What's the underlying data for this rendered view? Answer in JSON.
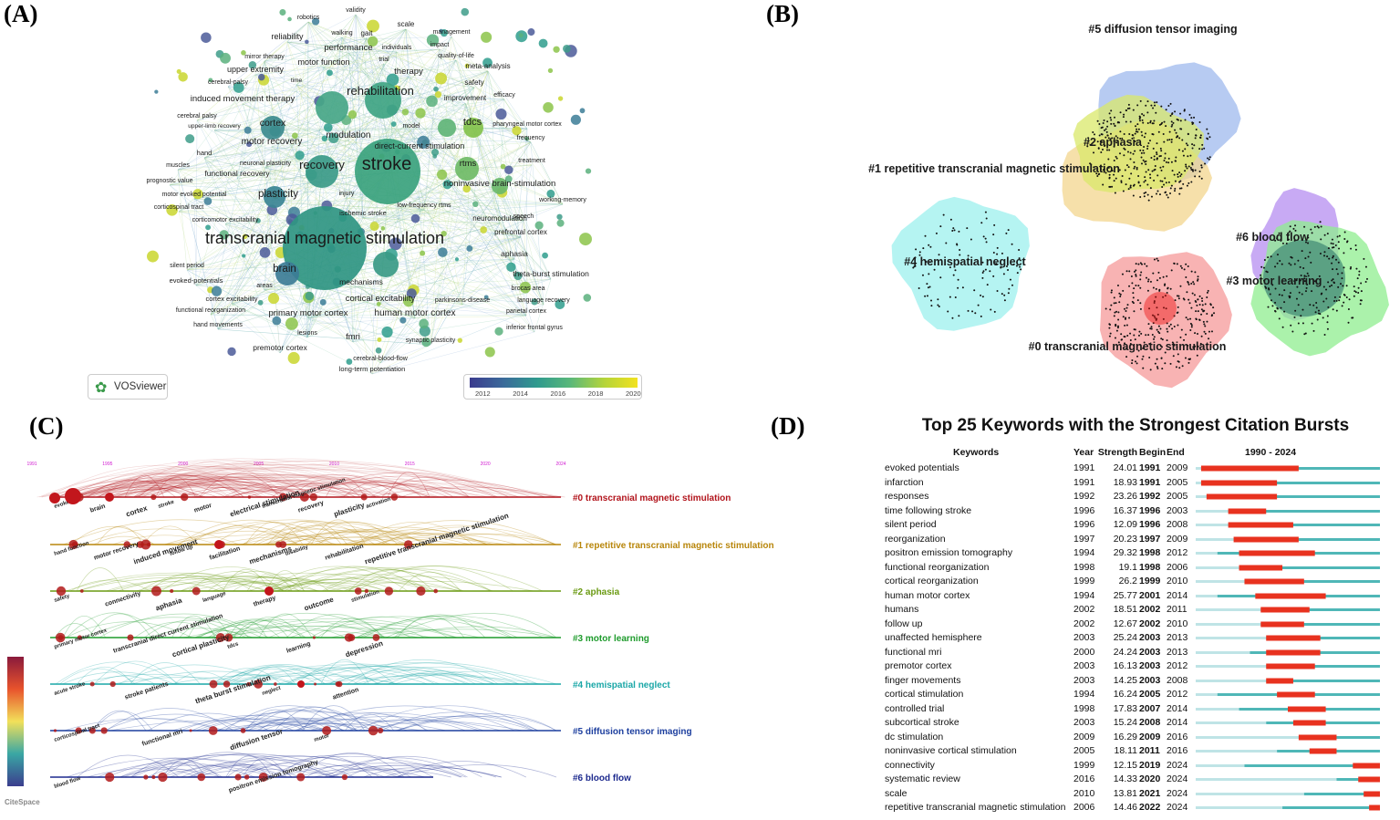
{
  "panels": {
    "a": "(A)",
    "b": "(B)",
    "c": "(C)",
    "d": "(D)"
  },
  "colors": {
    "red": "#e8321f",
    "teal": "#4fb7b7",
    "lightteal": "#bfe4e6"
  },
  "panel_a": {
    "logo_text": "VOSviewer",
    "legend_ticks": [
      "2012",
      "2014",
      "2016",
      "2018",
      "2020"
    ],
    "terms": [
      {
        "t": "robotics",
        "c": "#3b5a9a"
      },
      {
        "t": "validity",
        "c": "#a3c93a"
      },
      {
        "t": "scale",
        "c": "#bcd534"
      },
      {
        "t": "walking",
        "c": "#3d7d9a"
      },
      {
        "t": "gait",
        "c": "#52a58a"
      },
      {
        "t": "management",
        "c": "#9fca3a"
      },
      {
        "t": "reliability",
        "c": "#3f8f8c"
      },
      {
        "t": "performance",
        "c": "#3f8f8c"
      },
      {
        "t": "individuals",
        "c": "#7cc04c"
      },
      {
        "t": "impact",
        "c": "#a5cb38"
      },
      {
        "t": "mirror therapy",
        "c": "#3c7c97"
      },
      {
        "t": "trial",
        "c": "#5aad7a"
      },
      {
        "t": "quality-of-life",
        "c": "#b4cf32"
      },
      {
        "t": "motor function",
        "c": "#40898f"
      },
      {
        "t": "upper extremity",
        "c": "#3c6b9a"
      },
      {
        "t": "therapy",
        "c": "#6cb86a"
      },
      {
        "t": "meta-analysis",
        "c": "#b9d22c"
      },
      {
        "t": "cerebral-palsy",
        "c": "#4b5f9e"
      },
      {
        "t": "time",
        "c": "#3d8a92"
      },
      {
        "t": "safety",
        "c": "#9fc93e"
      },
      {
        "t": "rehabilitation",
        "c": "#3b9b88"
      },
      {
        "t": "induced movement therapy",
        "c": "#3c6d9a"
      },
      {
        "t": "improvement",
        "c": "#8ac24a"
      },
      {
        "t": "efficacy",
        "c": "#c4d41f"
      },
      {
        "t": "cerebral palsy",
        "c": "#4e5898"
      },
      {
        "t": "cortex",
        "c": "#3a7f93"
      },
      {
        "t": "tdcs",
        "c": "#8fc345"
      },
      {
        "t": "upper-limb recovery",
        "c": "#476b9b"
      },
      {
        "t": "model",
        "c": "#3d8a90"
      },
      {
        "t": "pharyngeal motor cortex",
        "c": "#4a7ba0"
      },
      {
        "t": "motor recovery",
        "c": "#3b6f98"
      },
      {
        "t": "modulation",
        "c": "#3b8d8e"
      },
      {
        "t": "frequency",
        "c": "#c3d325"
      },
      {
        "t": "hand",
        "c": "#4f5a98"
      },
      {
        "t": "neuronal plasticity",
        "c": "#3d7597"
      },
      {
        "t": "direct-current stimulation",
        "c": "#5db17a"
      },
      {
        "t": "muscles",
        "c": "#4e5a96"
      },
      {
        "t": "treatment",
        "c": "#c1d329"
      },
      {
        "t": "functional recovery",
        "c": "#3f6f99"
      },
      {
        "t": "recovery",
        "c": "#3b8a8e"
      },
      {
        "t": "stroke",
        "c": "#3b9e86"
      },
      {
        "t": "rtms",
        "c": "#6bba66"
      },
      {
        "t": "prognostic value",
        "c": "#54579a"
      },
      {
        "t": "noninvasive brain-stimulation",
        "c": "#5fb277"
      },
      {
        "t": "motor evoked potential",
        "c": "#4d5e9c"
      },
      {
        "t": "injury",
        "c": "#3b8c8c"
      },
      {
        "t": "plasticity",
        "c": "#3b7a93"
      },
      {
        "t": "working-memory",
        "c": "#8fc545"
      },
      {
        "t": "corticospinal tract",
        "c": "#465e9b"
      },
      {
        "t": "low-frequency rtms",
        "c": "#4ea17f"
      },
      {
        "t": "ischemic stroke",
        "c": "#3f8f8b"
      },
      {
        "t": "speech",
        "c": "#a6cb38"
      },
      {
        "t": "corticomotor excitability",
        "c": "#4a5a98"
      },
      {
        "t": "neuromodulation",
        "c": "#8ac247"
      },
      {
        "t": "prefrontal cortex",
        "c": "#6eb96a"
      },
      {
        "t": "transcranial magnetic stimulation",
        "c": "#3b7d92"
      },
      {
        "t": "aphasia",
        "c": "#58a97d"
      },
      {
        "t": "silent period",
        "c": "#4c4f93"
      },
      {
        "t": "brain",
        "c": "#3a6f97"
      },
      {
        "t": "theta-burst stimulation",
        "c": "#5eb078"
      },
      {
        "t": "evoked-potentials",
        "c": "#4a4f91"
      },
      {
        "t": "areas",
        "c": "#3d6e98"
      },
      {
        "t": "mechanisms",
        "c": "#3c7f92"
      },
      {
        "t": "brocas area",
        "c": "#6ab66c"
      },
      {
        "t": "cortex excitability",
        "c": "#495294"
      },
      {
        "t": "cortical excitability",
        "c": "#3b7f93"
      },
      {
        "t": "parkinsons-disease",
        "c": "#4f8f8a"
      },
      {
        "t": "language recovery",
        "c": "#74bb63"
      },
      {
        "t": "functional reorganization",
        "c": "#4a4e91"
      },
      {
        "t": "primary motor cortex",
        "c": "#3b6f98"
      },
      {
        "t": "human motor cortex",
        "c": "#3b5d9a"
      },
      {
        "t": "parietal cortex",
        "c": "#55a281"
      },
      {
        "t": "hand movements",
        "c": "#4b4c90"
      },
      {
        "t": "lesions",
        "c": "#3f6a98"
      },
      {
        "t": "inferior frontal gyrus",
        "c": "#5aae7a"
      },
      {
        "t": "fmri",
        "c": "#3b6797"
      },
      {
        "t": "synaptic plasticity",
        "c": "#72bb64"
      },
      {
        "t": "premotor cortex",
        "c": "#485896"
      },
      {
        "t": "cerebral-blood-flow",
        "c": "#3d7397"
      },
      {
        "t": "long-term potentiation",
        "c": "#4b5793"
      }
    ]
  },
  "panel_b": {
    "clusters": [
      {
        "label": "#5 diffusion tensor imaging",
        "color": "#9fb9ee"
      },
      {
        "label": "#2 aphasia",
        "color": "#d9e86a"
      },
      {
        "label": "#1 repetitive transcranial magnetic stimulation",
        "color": "#f3d68e"
      },
      {
        "label": "#4 hemispatial neglect",
        "color": "#9cf0ee"
      },
      {
        "label": "#6 blood flow",
        "color": "#b68ef0"
      },
      {
        "label": "#3 motor learning",
        "color": "#8fee8f"
      },
      {
        "label": "#0 transcranial magnetic stimulation",
        "color": "#f59a9a"
      }
    ]
  },
  "panel_c": {
    "years": [
      "1991",
      "1995",
      "2000",
      "2005",
      "2010",
      "2015",
      "2020",
      "2024"
    ],
    "watermark": "CiteSpace",
    "clusters": [
      {
        "label": "#0 transcranial magnetic stimulation",
        "color": "#b2141c",
        "words": [
          "evoked",
          "brain",
          "cortex",
          "stroke",
          "motor",
          "electrical stimulation",
          "transcranial magnetic stimulation",
          "recovery",
          "plasticity",
          "activation"
        ]
      },
      {
        "label": "#1 repetitive transcranial magnetic stimulation",
        "color": "#b8860b",
        "words": [
          "hand function",
          "motor recovery",
          "induced movement",
          "follow up",
          "facilitation",
          "mechanisms",
          "disability",
          "rehabilitation",
          "repetitive transcranial magnetic stimulation"
        ]
      },
      {
        "label": "#2 aphasia",
        "color": "#6a9a12",
        "words": [
          "safety",
          "connectivity",
          "aphasia",
          "language",
          "therapy",
          "outcome",
          "stimulation"
        ]
      },
      {
        "label": "#3 motor learning",
        "color": "#1e9b2c",
        "words": [
          "primary motor cortex",
          "transcranial direct current stimulation",
          "cortical plasticity",
          "tdcs",
          "learning",
          "depression"
        ]
      },
      {
        "label": "#4 hemispatial neglect",
        "color": "#1aa7a7",
        "words": [
          "acute stroke",
          "stroke patients",
          "theta burst stimulation",
          "neglect",
          "attention"
        ]
      },
      {
        "label": "#5 diffusion tensor imaging",
        "color": "#1c3e9e",
        "words": [
          "corticospinal tract",
          "functional mri",
          "diffusion tensor",
          "motor"
        ]
      },
      {
        "label": "#6 blood flow",
        "color": "#1d2a8e",
        "words": [
          "blood flow",
          "positron emission tomography"
        ]
      }
    ]
  },
  "panel_d": {
    "title": "Top 25 Keywords with the Strongest Citation Bursts",
    "headers": {
      "keywords": "Keywords",
      "year": "Year",
      "strength": "Strength",
      "begin": "Begin",
      "end": "End",
      "range": "1990 - 2024"
    }
  },
  "chart_data": {
    "type": "table",
    "title": "Top 25 Keywords with the Strongest Citation Bursts",
    "range": [
      1990,
      2024
    ],
    "rows": [
      {
        "keyword": "evoked potentials",
        "year": "1991",
        "strength": "24.01",
        "begin": "1991",
        "end": "2009"
      },
      {
        "keyword": "infarction",
        "year": "1991",
        "strength": "18.93",
        "begin": "1991",
        "end": "2005"
      },
      {
        "keyword": "responses",
        "year": "1992",
        "strength": "23.26",
        "begin": "1992",
        "end": "2005"
      },
      {
        "keyword": "time following stroke",
        "year": "1996",
        "strength": "16.37",
        "begin": "1996",
        "end": "2003"
      },
      {
        "keyword": "silent period",
        "year": "1996",
        "strength": "12.09",
        "begin": "1996",
        "end": "2008"
      },
      {
        "keyword": "reorganization",
        "year": "1997",
        "strength": "20.23",
        "begin": "1997",
        "end": "2009"
      },
      {
        "keyword": "positron emission tomography",
        "year": "1994",
        "strength": "29.32",
        "begin": "1998",
        "end": "2012"
      },
      {
        "keyword": "functional reorganization",
        "year": "1998",
        "strength": "19.1",
        "begin": "1998",
        "end": "2006"
      },
      {
        "keyword": "cortical reorganization",
        "year": "1999",
        "strength": "26.2",
        "begin": "1999",
        "end": "2010"
      },
      {
        "keyword": "human motor cortex",
        "year": "1994",
        "strength": "25.77",
        "begin": "2001",
        "end": "2014"
      },
      {
        "keyword": "humans",
        "year": "2002",
        "strength": "18.51",
        "begin": "2002",
        "end": "2011"
      },
      {
        "keyword": "follow up",
        "year": "2002",
        "strength": "12.67",
        "begin": "2002",
        "end": "2010"
      },
      {
        "keyword": "unaffected hemisphere",
        "year": "2003",
        "strength": "25.24",
        "begin": "2003",
        "end": "2013"
      },
      {
        "keyword": "functional mri",
        "year": "2000",
        "strength": "24.24",
        "begin": "2003",
        "end": "2013"
      },
      {
        "keyword": "premotor cortex",
        "year": "2003",
        "strength": "16.13",
        "begin": "2003",
        "end": "2012"
      },
      {
        "keyword": "finger movements",
        "year": "2003",
        "strength": "14.25",
        "begin": "2003",
        "end": "2008"
      },
      {
        "keyword": "cortical stimulation",
        "year": "1994",
        "strength": "16.24",
        "begin": "2005",
        "end": "2012"
      },
      {
        "keyword": "controlled trial",
        "year": "1998",
        "strength": "17.83",
        "begin": "2007",
        "end": "2014"
      },
      {
        "keyword": "subcortical stroke",
        "year": "2003",
        "strength": "15.24",
        "begin": "2008",
        "end": "2014"
      },
      {
        "keyword": "dc stimulation",
        "year": "2009",
        "strength": "16.29",
        "begin": "2009",
        "end": "2016"
      },
      {
        "keyword": "noninvasive cortical stimulation",
        "year": "2005",
        "strength": "18.11",
        "begin": "2011",
        "end": "2016"
      },
      {
        "keyword": "connectivity",
        "year": "1999",
        "strength": "12.15",
        "begin": "2019",
        "end": "2024"
      },
      {
        "keyword": "systematic review",
        "year": "2016",
        "strength": "14.33",
        "begin": "2020",
        "end": "2024"
      },
      {
        "keyword": "scale",
        "year": "2010",
        "strength": "13.81",
        "begin": "2021",
        "end": "2024"
      },
      {
        "keyword": "repetitive transcranial magnetic stimulation",
        "year": "2006",
        "strength": "14.46",
        "begin": "2022",
        "end": "2024"
      }
    ]
  }
}
